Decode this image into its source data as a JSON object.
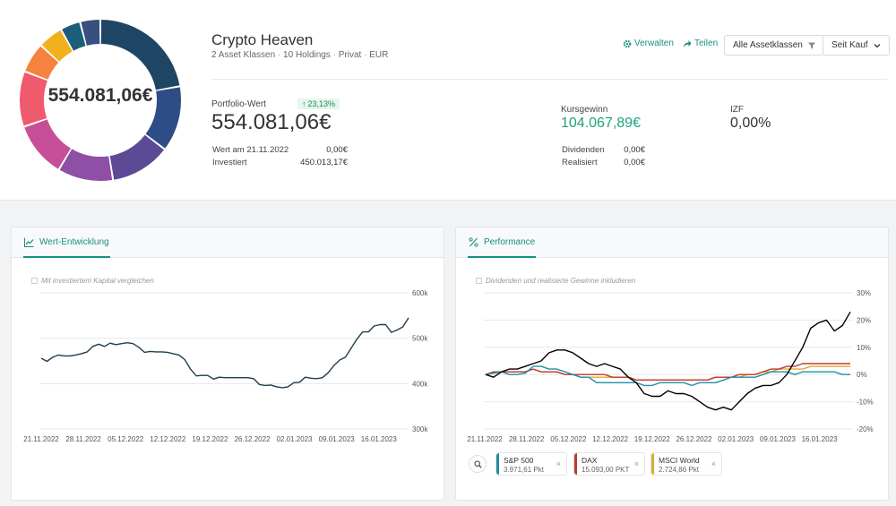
{
  "header": {
    "total_value_donut": "554.081,06€",
    "title": "Crypto Heaven",
    "subtitle_parts": [
      "2 Asset Klassen",
      "10 Holdings",
      "Privat",
      "EUR"
    ],
    "manage_label": "Verwalten",
    "share_label": "Teilen",
    "asset_filter_label": "Alle Assetklassen",
    "period_label": "Seit Kauf"
  },
  "donut_colors": [
    "#1f4564",
    "#2e4d86",
    "#5c4a95",
    "#8e4fa6",
    "#c64f97",
    "#f05a6d",
    "#f5823e",
    "#f3b01d",
    "#1a5e7a",
    "#384f7f"
  ],
  "donut_shares": [
    22,
    13,
    12,
    11,
    11,
    11,
    6,
    5,
    4,
    4
  ],
  "stats": {
    "portfolio_label": "Portfolio-Wert",
    "portfolio_change": "23,13%",
    "portfolio_value": "554.081,06€",
    "start_label": "Wert am 21.11.2022",
    "start_value": "0,00€",
    "invested_label": "Investiert",
    "invested_value": "450.013,17€",
    "gain_label": "Kursgewinn",
    "gain_value": "104.067,89€",
    "izf_label": "IZF",
    "izf_value": "0,00%",
    "div_label": "Dividenden",
    "div_value": "0,00€",
    "realized_label": "Realisiert",
    "realized_value": "0,00€"
  },
  "value_card": {
    "tab_label": "Wert-Entwicklung",
    "checkbox_label": "Mit investiertem Kapital vergleichen"
  },
  "perf_card": {
    "tab_label": "Performance",
    "checkbox_label": "Dividenden und realisierte Gewinne inkludieren"
  },
  "benchmarks": [
    {
      "name": "S&P 500",
      "value": "3.971,61 Pkt",
      "color": "#1f8fa6"
    },
    {
      "name": "DAX",
      "value": "15.093,00 PKT",
      "color": "#c0392b"
    },
    {
      "name": "MSCI World",
      "value": "2.724,86 Pkt",
      "color": "#e0a82e"
    }
  ],
  "chart_data": [
    {
      "type": "line",
      "x_ticks": [
        "21.11.2022",
        "28.11.2022",
        "05.12.2022",
        "12.12.2022",
        "19.12.2022",
        "26.12.2022",
        "02.01.2023",
        "09.01.2023",
        "16.01.2023"
      ],
      "y_ticks": [
        "600k",
        "500k",
        "400k",
        "300k"
      ],
      "ylim": [
        300000,
        600000
      ],
      "series": [
        {
          "color": "#1f3d4d",
          "values": [
            456000,
            449000,
            458000,
            463000,
            461000,
            461000,
            463000,
            466000,
            470000,
            482000,
            487000,
            482000,
            489000,
            486000,
            488000,
            490000,
            488000,
            480000,
            469000,
            471000,
            470000,
            470000,
            469000,
            466000,
            463000,
            453000,
            432000,
            417000,
            418000,
            418000,
            410000,
            414000,
            413000,
            413000,
            413000,
            413000,
            413000,
            411000,
            398000,
            396000,
            397000,
            393000,
            391000,
            393000,
            402000,
            403000,
            414000,
            412000,
            411000,
            413000,
            424000,
            440000,
            452000,
            458000,
            478000,
            498000,
            514000,
            514000,
            527000,
            530000,
            530000,
            513000,
            518000,
            525000,
            545000
          ]
        }
      ]
    },
    {
      "type": "line",
      "x_ticks": [
        "21.11.2022",
        "28.11.2022",
        "05.12.2022",
        "12.12.2022",
        "19.12.2022",
        "26.12.2022",
        "02.01.2023",
        "09.01.2023",
        "16.01.2023"
      ],
      "y_ticks": [
        "30%",
        "20%",
        "10%",
        "0%",
        "-10%",
        "-20%"
      ],
      "ylim": [
        -20,
        30
      ],
      "series": [
        {
          "color": "#000000",
          "values": [
            0,
            -1,
            1,
            2,
            2,
            3,
            4,
            5,
            8,
            9,
            9,
            8,
            6,
            4,
            3,
            4,
            3,
            2,
            -1,
            -3,
            -7,
            -8,
            -8,
            -6,
            -7,
            -7,
            -8,
            -10,
            -12,
            -13,
            -12,
            -13,
            -10,
            -7,
            -5,
            -4,
            -4,
            -3,
            0,
            5,
            10,
            17,
            19,
            20,
            16,
            18,
            23
          ]
        },
        {
          "color": "#1f8fa6",
          "values": [
            0,
            0.5,
            1,
            0,
            0,
            0.5,
            3,
            3,
            2,
            2,
            1,
            0,
            -1,
            -1,
            -3,
            -3,
            -3,
            -3,
            -3,
            -3,
            -4,
            -4,
            -3,
            -3,
            -3,
            -3,
            -4,
            -3,
            -3,
            -3,
            -2,
            -1,
            -1,
            -1,
            -1,
            0,
            1,
            1,
            1,
            0,
            1,
            1,
            1,
            1,
            1,
            0,
            0
          ]
        },
        {
          "color": "#c0392b",
          "values": [
            0,
            1,
            1,
            1,
            1,
            1,
            2,
            1,
            1,
            1,
            0,
            0,
            0,
            0,
            0,
            0,
            -1,
            -1,
            -1,
            -2,
            -2,
            -2,
            -2,
            -2,
            -2,
            -2,
            -2,
            -2,
            -2,
            -1,
            -1,
            -1,
            0,
            0,
            0,
            1,
            2,
            2,
            3,
            3,
            4,
            4,
            4,
            4,
            4,
            4,
            4
          ]
        },
        {
          "color": "#e0a82e",
          "values": [
            0,
            0.5,
            1,
            1,
            1,
            1,
            2,
            1,
            1,
            1,
            0,
            0,
            -1,
            -1,
            -1,
            -1,
            -1,
            -1,
            -1,
            -2,
            -2,
            -2,
            -2,
            -2,
            -2,
            -2,
            -2,
            -2,
            -2,
            -1,
            -1,
            -1,
            -1,
            0,
            0,
            1,
            1,
            2,
            2,
            2,
            2,
            3,
            3,
            3,
            3,
            3,
            3
          ]
        }
      ]
    }
  ]
}
